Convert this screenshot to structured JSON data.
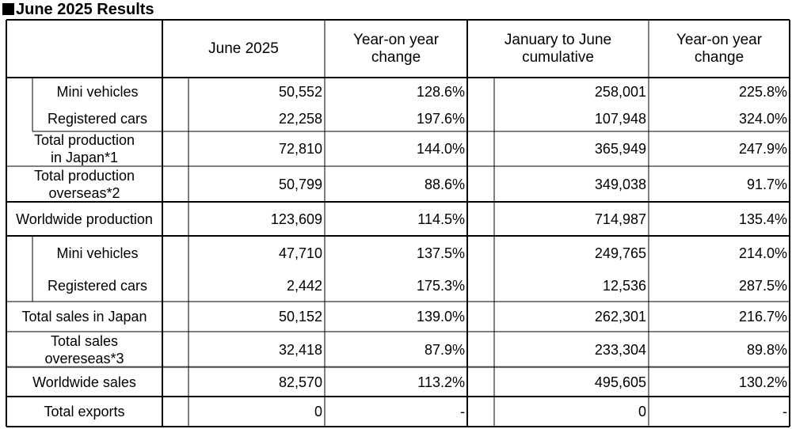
{
  "title": "June 2025 Results",
  "headers": {
    "month": "June 2025",
    "month_yoy": [
      "Year-on year",
      "change"
    ],
    "cumulative": [
      "January to June",
      "cumulative"
    ],
    "cumulative_yoy": [
      "Year-on year",
      "change"
    ]
  },
  "rows": [
    {
      "label": [
        "Mini vehicles"
      ],
      "values": [
        "50,552",
        "128.6%",
        "258,001",
        "225.8%"
      ]
    },
    {
      "label": [
        "Registered cars"
      ],
      "values": [
        "22,258",
        "197.6%",
        "107,948",
        "324.0%"
      ]
    },
    {
      "label": [
        "Total production",
        "in Japan*1"
      ],
      "values": [
        "72,810",
        "144.0%",
        "365,949",
        "247.9%"
      ]
    },
    {
      "label": [
        "Total production",
        "overseas*2"
      ],
      "values": [
        "50,799",
        "88.6%",
        "349,038",
        "91.7%"
      ]
    },
    {
      "label": [
        "Worldwide production"
      ],
      "values": [
        "123,609",
        "114.5%",
        "714,987",
        "135.4%"
      ]
    },
    {
      "label": [
        "Mini vehicles"
      ],
      "values": [
        "47,710",
        "137.5%",
        "249,765",
        "214.0%"
      ]
    },
    {
      "label": [
        "Registered cars"
      ],
      "values": [
        "2,442",
        "175.3%",
        "12,536",
        "287.5%"
      ]
    },
    {
      "label": [
        "Total sales in Japan"
      ],
      "values": [
        "50,152",
        "139.0%",
        "262,301",
        "216.7%"
      ]
    },
    {
      "label": [
        "Total sales",
        "overeseas*3"
      ],
      "values": [
        "32,418",
        "87.9%",
        "233,304",
        "89.8%"
      ]
    },
    {
      "label": [
        "Worldwide sales"
      ],
      "values": [
        "82,570",
        "113.2%",
        "495,605",
        "130.2%"
      ]
    },
    {
      "label": [
        "Total exports"
      ],
      "values": [
        "0",
        "-",
        "0",
        "-"
      ]
    }
  ]
}
